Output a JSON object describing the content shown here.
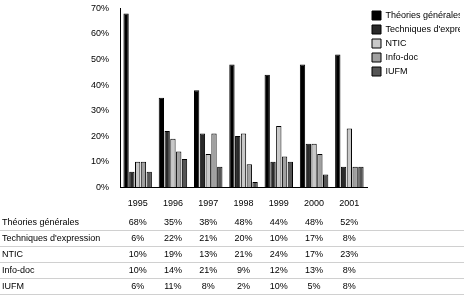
{
  "chart_data": {
    "type": "bar",
    "categories": [
      "1995",
      "1996",
      "1997",
      "1998",
      "1999",
      "2000",
      "2001"
    ],
    "series": [
      {
        "name": "Théories générales",
        "color": "#000000",
        "values": [
          68,
          35,
          38,
          48,
          44,
          48,
          52
        ],
        "value_labels": [
          "68%",
          "35%",
          "38%",
          "48%",
          "44%",
          "48%",
          "52%"
        ]
      },
      {
        "name": "Techniques d'expression",
        "color": "#2a2a2a",
        "values": [
          6,
          22,
          21,
          20,
          10,
          17,
          8
        ],
        "value_labels": [
          "6%",
          "22%",
          "21%",
          "20%",
          "10%",
          "17%",
          "8%"
        ]
      },
      {
        "name": "NTIC",
        "color": "#c8c8c8",
        "values": [
          10,
          19,
          13,
          21,
          24,
          17,
          23
        ],
        "value_labels": [
          "10%",
          "19%",
          "13%",
          "21%",
          "24%",
          "17%",
          "23%"
        ]
      },
      {
        "name": "Info-doc",
        "color": "#a0a0a0",
        "values": [
          10,
          14,
          21,
          9,
          12,
          13,
          8
        ],
        "value_labels": [
          "10%",
          "14%",
          "21%",
          "9%",
          "12%",
          "13%",
          "8%"
        ]
      },
      {
        "name": "IUFM",
        "color": "#555555",
        "values": [
          6,
          11,
          8,
          2,
          10,
          5,
          8
        ],
        "value_labels": [
          "6%",
          "11%",
          "8%",
          "2%",
          "10%",
          "5%",
          "8%"
        ]
      }
    ],
    "ylim": [
      0,
      70
    ],
    "yticks": [
      {
        "value": 0,
        "label": "0%"
      },
      {
        "value": 10,
        "label": "10%"
      },
      {
        "value": 20,
        "label": "20%"
      },
      {
        "value": 30,
        "label": "30%"
      },
      {
        "value": 40,
        "label": "40%"
      },
      {
        "value": 50,
        "label": "50%"
      },
      {
        "value": 60,
        "label": "60%"
      },
      {
        "value": 70,
        "label": "70%"
      }
    ],
    "grid": false,
    "legend": "upper right"
  }
}
